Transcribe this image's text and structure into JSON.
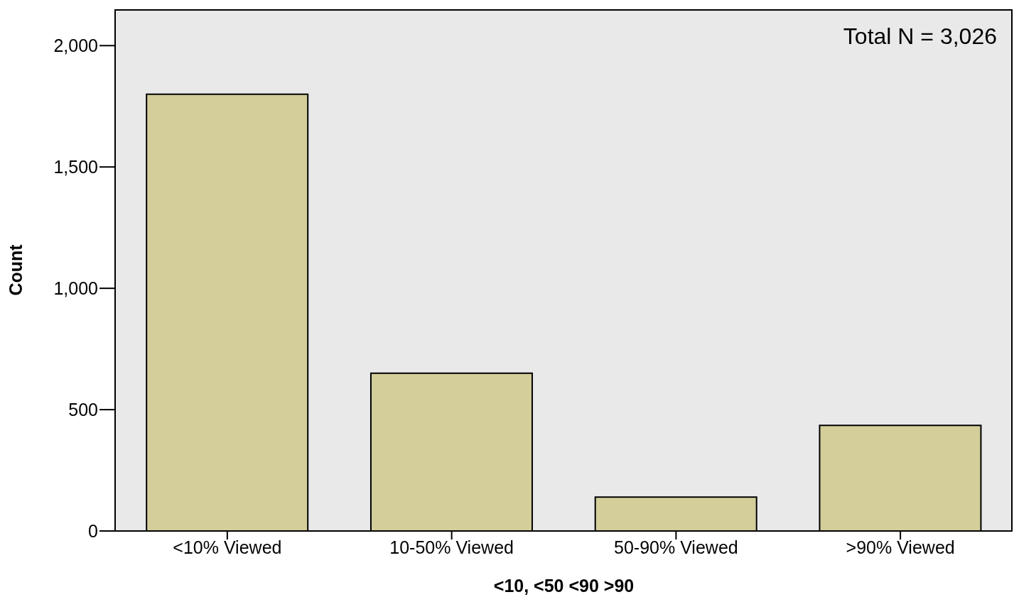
{
  "chart_data": {
    "type": "bar",
    "xlabel": "<10, <50 <90 >90",
    "ylabel": "Count",
    "categories": [
      "<10% Viewed",
      "10-50% Viewed",
      "50-90% Viewed",
      ">90% Viewed"
    ],
    "values": [
      1800,
      650,
      140,
      435
    ],
    "color": "#d3ce9a",
    "ylim": [
      0,
      2150
    ],
    "yticks": [
      0,
      500,
      {
        "value": 1000,
        "label": "1,000"
      },
      {
        "value": 1500,
        "label": "1,500"
      },
      {
        "value": 2000,
        "label": "2,000"
      }
    ],
    "grid": false,
    "annotations": [
      "Total N = 3,026"
    ]
  }
}
